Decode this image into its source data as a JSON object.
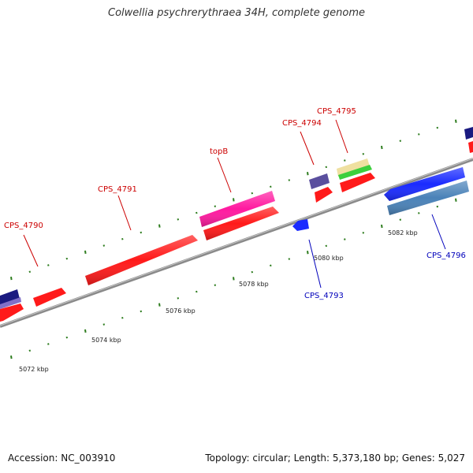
{
  "title": "Colwellia psychrerythraea 34H, complete genome",
  "accession": "Accession: NC_003910",
  "summary": "Topology: circular; Length: 5,373,180 bp; Genes: 5,027",
  "colors": {
    "backbone": "#8c8c8c",
    "tick": "#2e7d1f",
    "forward_label": "#cc0000",
    "reverse_label": "#0000bb",
    "cds_forward": "#ff1a1a",
    "cds_reverse": "#1a2bff",
    "navy": "#1a1a80",
    "slate": "#5a4f9e",
    "pink": "#ff1aa0",
    "steel": "#4a82b8",
    "tan": "#efe0a0",
    "green": "#3ccf3c",
    "lavender": "#8070c8"
  },
  "scale_labels": [
    "5072 kbp",
    "5074 kbp",
    "5076 kbp",
    "5078 kbp",
    "5080 kbp",
    "5082 kbp"
  ],
  "gene_labels": [
    {
      "text": "CPS_4790",
      "strand": "forward"
    },
    {
      "text": "CPS_4791",
      "strand": "forward"
    },
    {
      "text": "topB",
      "strand": "forward"
    },
    {
      "text": "CPS_4794",
      "strand": "forward"
    },
    {
      "text": "CPS_4795",
      "strand": "forward"
    },
    {
      "text": "CPS_4793",
      "strand": "reverse"
    },
    {
      "text": "CPS_4796",
      "strand": "reverse"
    }
  ]
}
